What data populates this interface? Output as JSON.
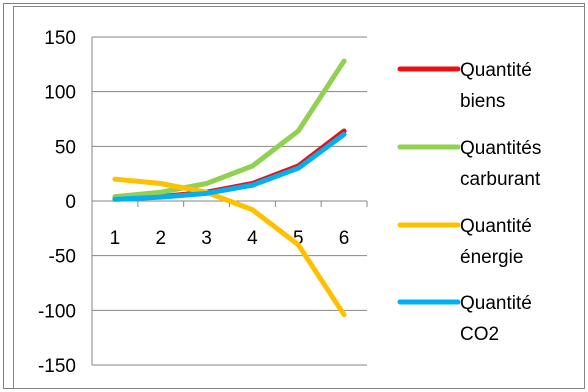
{
  "chart_data": {
    "type": "line",
    "categories": [
      "1",
      "2",
      "3",
      "4",
      "5",
      "6"
    ],
    "ylim": [
      -150,
      150
    ],
    "yticks": [
      "150",
      "100",
      "50",
      "0",
      "-50",
      "-100",
      "-150"
    ],
    "ytick_values": [
      150,
      100,
      50,
      0,
      -50,
      -100,
      -150
    ],
    "grid": "horizontal",
    "legend_position": "right",
    "series": [
      {
        "name": [
          "Quantité",
          "biens"
        ],
        "color": "#e81010",
        "values": [
          2,
          4,
          8,
          16,
          32,
          64
        ]
      },
      {
        "name": [
          "Quantités",
          "carburant"
        ],
        "color": "#92d050",
        "values": [
          4,
          8,
          16,
          32,
          64,
          128
        ]
      },
      {
        "name": [
          "Quantité",
          "énergie"
        ],
        "color": "#ffc000",
        "values": [
          20,
          16,
          8,
          -8,
          -40,
          -104
        ]
      },
      {
        "name": [
          "Quantité",
          "CO2"
        ],
        "color": "#00b0f0",
        "values": [
          1.5,
          3.5,
          7,
          14.5,
          30,
          61
        ]
      }
    ]
  }
}
